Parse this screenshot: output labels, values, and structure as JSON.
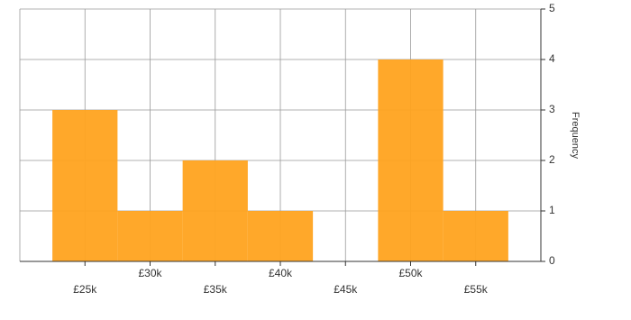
{
  "chart_data": {
    "type": "histogram",
    "y_label": "Frequency",
    "bins": [
      22500,
      27500,
      32500,
      37500,
      42500,
      47500,
      52500,
      57500
    ],
    "counts": [
      3,
      1,
      2,
      1,
      0,
      4,
      1
    ],
    "color": "#ffa31f",
    "xlim": [
      20000,
      60000
    ],
    "xticks": [
      {
        "value": 25000,
        "label": "£25k"
      },
      {
        "value": 30000,
        "label": "£30k"
      },
      {
        "value": 35000,
        "label": "£35k"
      },
      {
        "value": 40000,
        "label": "£40k"
      },
      {
        "value": 45000,
        "label": "£45k"
      },
      {
        "value": 50000,
        "label": "£50k"
      },
      {
        "value": 55000,
        "label": "£55k"
      }
    ],
    "ylim": [
      0,
      5
    ],
    "yticks": [
      0,
      1,
      2,
      3,
      4,
      5
    ],
    "grid": true
  }
}
